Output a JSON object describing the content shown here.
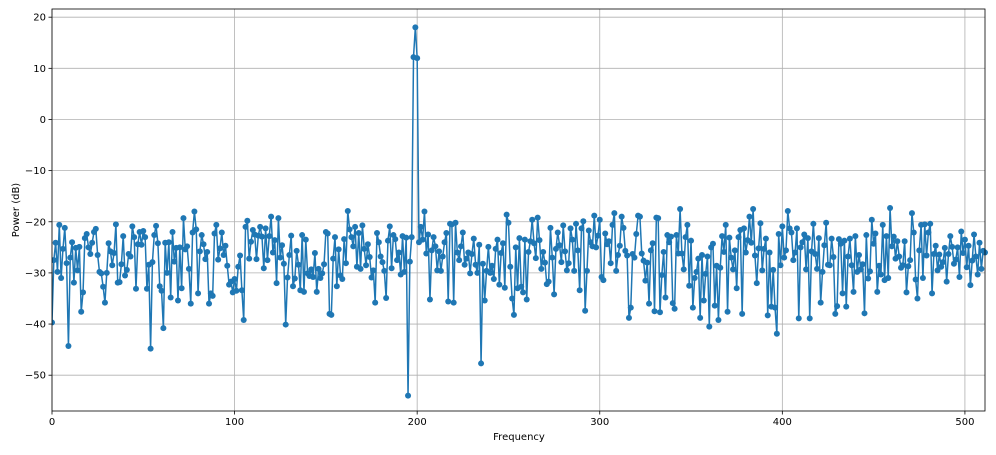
{
  "chart_data": {
    "type": "line",
    "x_label": "Frequency",
    "y_label": "Power (dB)",
    "color": "#1f77b4",
    "grid": true,
    "xlim": [
      0,
      511
    ],
    "ylim": [
      -57.0,
      21.6
    ],
    "xticks": [
      0,
      100,
      200,
      300,
      400,
      500
    ],
    "yticks": [
      {
        "value": -50,
        "label": "−50"
      },
      {
        "value": -40,
        "label": "−40"
      },
      {
        "value": -30,
        "label": "−30"
      },
      {
        "value": -20,
        "label": "−20"
      },
      {
        "value": -10,
        "label": "−10"
      },
      0,
      10,
      20
    ],
    "x": [
      0,
      1,
      2,
      3,
      4,
      5,
      6,
      7,
      8,
      9,
      10,
      11,
      12,
      13,
      14,
      15,
      16,
      17,
      18,
      19,
      20,
      21,
      22,
      23,
      24,
      25,
      26,
      27,
      28,
      29,
      30,
      31,
      32,
      33,
      34,
      35,
      36,
      37,
      38,
      39,
      40,
      41,
      42,
      43,
      44,
      45,
      46,
      47,
      48,
      49,
      50,
      51,
      52,
      53,
      54,
      55,
      56,
      57,
      58,
      59,
      60,
      61,
      62,
      63,
      64,
      65,
      66,
      67,
      68,
      69,
      70,
      71,
      72,
      73,
      74,
      75,
      76,
      77,
      78,
      79,
      80,
      81,
      82,
      83,
      84,
      85,
      86,
      87,
      88,
      89,
      90,
      91,
      92,
      93,
      94,
      95,
      96,
      97,
      98,
      99,
      100,
      101,
      102,
      103,
      104,
      105,
      106,
      107,
      108,
      109,
      110,
      111,
      112,
      113,
      114,
      115,
      116,
      117,
      118,
      119,
      120,
      121,
      122,
      123,
      124,
      125,
      126,
      127,
      128,
      129,
      130,
      131,
      132,
      133,
      134,
      135,
      136,
      137,
      138,
      139,
      140,
      141,
      142,
      143,
      144,
      145,
      146,
      147,
      148,
      149,
      150,
      151,
      152,
      153,
      154,
      155,
      156,
      157,
      158,
      159,
      160,
      161,
      162,
      163,
      164,
      165,
      166,
      167,
      168,
      169,
      170,
      171,
      172,
      173,
      174,
      175,
      176,
      177,
      178,
      179,
      180,
      181,
      182,
      183,
      184,
      185,
      186,
      187,
      188,
      189,
      190,
      191,
      192,
      193,
      194,
      195,
      196,
      197,
      198,
      199,
      200,
      201,
      202,
      203,
      204,
      205,
      206,
      207,
      208,
      209,
      210,
      211,
      212,
      213,
      214,
      215,
      216,
      217,
      218,
      219,
      220,
      221,
      222,
      223,
      224,
      225,
      226,
      227,
      228,
      229,
      230,
      231,
      232,
      233,
      234,
      235,
      236,
      237,
      238,
      239,
      240,
      241,
      242,
      243,
      244,
      245,
      246,
      247,
      248,
      249,
      250,
      251,
      252,
      253,
      254,
      255,
      256,
      257,
      258,
      259,
      260,
      261,
      262,
      263,
      264,
      265,
      266,
      267,
      268,
      269,
      270,
      271,
      272,
      273,
      274,
      275,
      276,
      277,
      278,
      279,
      280,
      281,
      282,
      283,
      284,
      285,
      286,
      287,
      288,
      289,
      290,
      291,
      292,
      293,
      294,
      295,
      296,
      297,
      298,
      299,
      300,
      301,
      302,
      303,
      304,
      305,
      306,
      307,
      308,
      309,
      310,
      311,
      312,
      313,
      314,
      315,
      316,
      317,
      318,
      319,
      320,
      321,
      322,
      323,
      324,
      325,
      326,
      327,
      328,
      329,
      330,
      331,
      332,
      333,
      334,
      335,
      336,
      337,
      338,
      339,
      340,
      341,
      342,
      343,
      344,
      345,
      346,
      347,
      348,
      349,
      350,
      351,
      352,
      353,
      354,
      355,
      356,
      357,
      358,
      359,
      360,
      361,
      362,
      363,
      364,
      365,
      366,
      367,
      368,
      369,
      370,
      371,
      372,
      373,
      374,
      375,
      376,
      377,
      378,
      379,
      380,
      381,
      382,
      383,
      384,
      385,
      386,
      387,
      388,
      389,
      390,
      391,
      392,
      393,
      394,
      395,
      396,
      397,
      398,
      399,
      400,
      401,
      402,
      403,
      404,
      405,
      406,
      407,
      408,
      409,
      410,
      411,
      412,
      413,
      414,
      415,
      416,
      417,
      418,
      419,
      420,
      421,
      422,
      423,
      424,
      425,
      426,
      427,
      428,
      429,
      430,
      431,
      432,
      433,
      434,
      435,
      436,
      437,
      438,
      439,
      440,
      441,
      442,
      443,
      444,
      445,
      446,
      447,
      448,
      449,
      450,
      451,
      452,
      453,
      454,
      455,
      456,
      457,
      458,
      459,
      460,
      461,
      462,
      463,
      464,
      465,
      466,
      467,
      468,
      469,
      470,
      471,
      472,
      473,
      474,
      475,
      476,
      477,
      478,
      479,
      480,
      481,
      482,
      483,
      484,
      485,
      486,
      487,
      488,
      489,
      490,
      491,
      492,
      493,
      494,
      495,
      496,
      497,
      498,
      499,
      500,
      501,
      502,
      503,
      504,
      505,
      506,
      507,
      508,
      509,
      510,
      511
    ],
    "values": [
      -39.7,
      -27.5,
      -24.1,
      -29.8,
      -20.6,
      -31.0,
      -25.3,
      -21.2,
      -28.1,
      -44.3,
      -27.0,
      -24.0,
      -31.9,
      -25.1,
      -29.5,
      -24.9,
      -37.6,
      -33.8,
      -23.2,
      -22.4,
      -25.0,
      -26.3,
      -24.1,
      -22.0,
      -21.4,
      -26.5,
      -29.8,
      -30.1,
      -32.7,
      -35.8,
      -30.0,
      -24.2,
      -25.8,
      -28.5,
      -26.1,
      -20.5,
      -31.9,
      -31.8,
      -28.3,
      -22.8,
      -30.5,
      -29.4,
      -26.3,
      -26.8,
      -20.9,
      -23.0,
      -33.1,
      -24.4,
      -22.0,
      -24.5,
      -21.8,
      -23.0,
      -33.1,
      -28.4,
      -44.8,
      -27.9,
      -22.6,
      -20.8,
      -24.2,
      -32.6,
      -33.5,
      -40.8,
      -24.1,
      -30.0,
      -24.0,
      -34.8,
      -22.0,
      -27.8,
      -25.1,
      -35.4,
      -25.0,
      -33.0,
      -19.3,
      -25.4,
      -24.8,
      -29.2,
      -36.0,
      -22.1,
      -18.0,
      -21.5,
      -34.0,
      -25.8,
      -22.6,
      -24.4,
      -27.3,
      -25.9,
      -36.0,
      -34.0,
      -34.5,
      -22.3,
      -20.6,
      -27.4,
      -25.2,
      -22.1,
      -26.5,
      -24.7,
      -28.6,
      -32.3,
      -31.7,
      -33.8,
      -31.2,
      -33.5,
      -28.8,
      -26.6,
      -33.4,
      -39.2,
      -21.0,
      -19.8,
      -27.2,
      -23.9,
      -21.6,
      -22.5,
      -27.3,
      -22.7,
      -21.0,
      -22.9,
      -29.1,
      -21.3,
      -27.5,
      -22.8,
      -19.0,
      -26.0,
      -23.6,
      -32.0,
      -19.3,
      -27.0,
      -24.6,
      -28.2,
      -40.1,
      -30.9,
      -26.5,
      -22.7,
      -32.6,
      -31.1,
      -25.7,
      -28.4,
      -33.4,
      -22.6,
      -33.7,
      -23.5,
      -30.1,
      -30.6,
      -29.3,
      -30.8,
      -26.1,
      -33.7,
      -29.2,
      -31.0,
      -30.1,
      -28.3,
      -22.0,
      -22.3,
      -38.0,
      -38.2,
      -27.2,
      -23.0,
      -32.6,
      -25.4,
      -30.5,
      -31.2,
      -23.4,
      -28.1,
      -17.9,
      -21.5,
      -23.0,
      -24.8,
      -21.0,
      -28.8,
      -22.2,
      -29.2,
      -20.7,
      -25.3,
      -28.5,
      -24.4,
      -26.9,
      -30.9,
      -29.5,
      -35.8,
      -22.2,
      -24.0,
      -26.8,
      -27.9,
      -29.6,
      -34.9,
      -23.7,
      -20.9,
      -29.1,
      -22.6,
      -23.4,
      -27.5,
      -26.0,
      -30.3,
      -22.8,
      -29.8,
      -23.1,
      -54.0,
      -27.8,
      -23.0,
      12.2,
      18.0,
      12.0,
      -24.0,
      -21.0,
      -23.5,
      -18.0,
      -26.2,
      -22.5,
      -35.2,
      -25.6,
      -23.0,
      -24.8,
      -29.5,
      -25.8,
      -29.6,
      -26.8,
      -24.0,
      -22.2,
      -35.6,
      -20.4,
      -20.5,
      -35.8,
      -20.2,
      -26.0,
      -27.5,
      -24.8,
      -22.1,
      -28.4,
      -27.2,
      -26.0,
      -30.1,
      -26.3,
      -23.3,
      -28.4,
      -30.0,
      -24.5,
      -47.7,
      -28.2,
      -35.4,
      -29.6,
      -24.9,
      -30.0,
      -28.6,
      -31.2,
      -25.3,
      -23.5,
      -32.3,
      -26.1,
      -24.2,
      -32.9,
      -18.6,
      -20.2,
      -28.8,
      -35.0,
      -38.2,
      -25.0,
      -33.0,
      -23.2,
      -32.7,
      -33.8,
      -23.5,
      -35.2,
      -25.9,
      -23.8,
      -19.6,
      -24.2,
      -27.1,
      -19.2,
      -23.6,
      -29.2,
      -25.9,
      -28.0,
      -32.2,
      -31.7,
      -21.2,
      -27.0,
      -34.2,
      -25.3,
      -22.1,
      -24.6,
      -27.9,
      -20.7,
      -25.8,
      -29.5,
      -28.1,
      -21.3,
      -23.5,
      -29.6,
      -20.4,
      -25.6,
      -33.4,
      -21.3,
      -19.9,
      -37.4,
      -29.6,
      -21.7,
      -24.0,
      -24.8,
      -18.8,
      -25.0,
      -22.7,
      -19.6,
      -30.8,
      -31.4,
      -22.3,
      -24.4,
      -23.8,
      -28.1,
      -20.6,
      -18.3,
      -29.6,
      -26.5,
      -24.7,
      -19.0,
      -21.2,
      -25.7,
      -26.6,
      -38.8,
      -36.8,
      -26.3,
      -27.0,
      -22.4,
      -18.8,
      -19.0,
      -26.2,
      -27.6,
      -31.5,
      -28.0,
      -36.0,
      -25.6,
      -24.2,
      -37.5,
      -19.2,
      -19.3,
      -37.7,
      -30.4,
      -25.9,
      -34.8,
      -22.6,
      -24.0,
      -22.9,
      -35.9,
      -37.0,
      -22.6,
      -26.2,
      -17.5,
      -26.2,
      -29.3,
      -23.0,
      -20.6,
      -32.5,
      -23.7,
      -36.8,
      -31.0,
      -29.8,
      -27.2,
      -38.8,
      -26.5,
      -35.4,
      -30.2,
      -26.8,
      -40.5,
      -25.0,
      -24.3,
      -36.4,
      -28.6,
      -39.2,
      -29.0,
      -22.8,
      -25.9,
      -20.6,
      -37.6,
      -23.1,
      -27.0,
      -29.3,
      -25.6,
      -33.0,
      -23.0,
      -21.6,
      -38.0,
      -21.3,
      -26.0,
      -23.6,
      -19.0,
      -24.1,
      -17.5,
      -26.6,
      -32.0,
      -25.2,
      -20.3,
      -29.5,
      -25.3,
      -23.3,
      -38.3,
      -26.0,
      -36.6,
      -29.4,
      -36.8,
      -41.9,
      -22.4,
      -28.5,
      -20.9,
      -27.0,
      -25.6,
      -17.9,
      -21.3,
      -22.1,
      -27.5,
      -26.0,
      -21.3,
      -38.9,
      -25.0,
      -24.0,
      -22.5,
      -29.3,
      -23.2,
      -38.9,
      -25.8,
      -20.4,
      -26.3,
      -29.2,
      -23.2,
      -35.8,
      -29.8,
      -24.6,
      -20.2,
      -28.4,
      -28.5,
      -23.3,
      -26.9,
      -38.0,
      -36.5,
      -23.4,
      -24.3,
      -34.0,
      -23.7,
      -36.6,
      -26.8,
      -23.3,
      -28.5,
      -33.7,
      -22.8,
      -29.8,
      -26.5,
      -29.3,
      -28.3,
      -37.9,
      -22.6,
      -31.1,
      -29.7,
      -19.6,
      -24.3,
      -22.3,
      -33.7,
      -28.6,
      -30.3,
      -20.6,
      -31.4,
      -22.8,
      -31.0,
      -17.3,
      -24.8,
      -22.9,
      -27.2,
      -23.8,
      -26.8,
      -29.0,
      -28.5,
      -23.8,
      -33.8,
      -28.7,
      -27.5,
      -18.3,
      -22.1,
      -31.3,
      -35.0,
      -25.6,
      -20.6,
      -31.0,
      -20.5,
      -26.6,
      -22.1,
      -20.4,
      -34.0,
      -26.3,
      -24.7,
      -29.5,
      -26.4,
      -28.8,
      -27.9,
      -25.1,
      -31.7,
      -26.3,
      -22.8,
      -24.9,
      -28.2,
      -27.4,
      -25.0,
      -30.8,
      -21.9,
      -26.1,
      -23.5,
      -28.9,
      -24.7,
      -32.4,
      -27.6,
      -22.5,
      -26.8,
      -30.3,
      -24.1,
      -29.2,
      -25.7,
      -26.0
    ]
  }
}
